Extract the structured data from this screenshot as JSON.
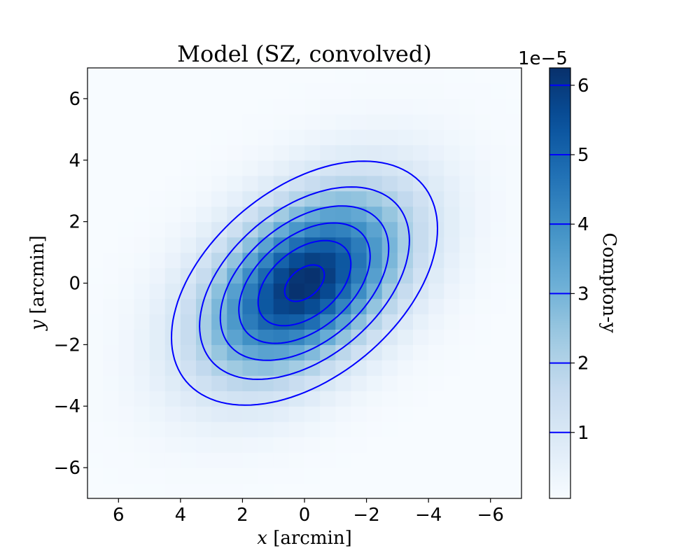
{
  "chart_data": {
    "type": "heatmap",
    "title": "Model (SZ, convolved)",
    "xlabel_var": "x",
    "xlabel_unit": "[arcmin]",
    "ylabel_var": "y",
    "ylabel_unit": "[arcmin]",
    "x_ticks": [
      "6",
      "4",
      "2",
      "0",
      "−2",
      "−4",
      "−6"
    ],
    "y_ticks": [
      "6",
      "4",
      "2",
      "0",
      "−2",
      "−4",
      "−6"
    ],
    "x_tick_values": [
      6,
      4,
      2,
      0,
      -2,
      -4,
      -6
    ],
    "y_tick_values": [
      6,
      4,
      2,
      0,
      -2,
      -4,
      -6
    ],
    "xlim": [
      7,
      -7
    ],
    "ylim": [
      -7,
      7
    ],
    "x_inverted": true,
    "grid": false,
    "pixel_size_arcmin": 0.5,
    "model": {
      "peak": 6.25e-05,
      "sigma_major_arcmin": 2.6,
      "sigma_minor_arcmin": 1.6,
      "major_axis_angle_deg": -40,
      "center": [
        0,
        0
      ]
    },
    "colormap": "Blues",
    "colormap_stops": [
      "#f7fbff",
      "#deebf7",
      "#c6dbef",
      "#9ecae1",
      "#6baed6",
      "#4292c6",
      "#2171b5",
      "#08519c",
      "#08306b"
    ],
    "contour_color": "#0000ff",
    "contour_levels": [
      1e-05,
      2e-05,
      3e-05,
      4e-05,
      5e-05,
      6e-05
    ],
    "colorbar": {
      "label": "Compton-y",
      "offset_text": "1e−5",
      "ticks": [
        "1",
        "2",
        "3",
        "4",
        "5",
        "6"
      ],
      "tick_values": [
        1,
        2,
        3,
        4,
        5,
        6
      ],
      "range": [
        0.05,
        6.25
      ]
    }
  }
}
